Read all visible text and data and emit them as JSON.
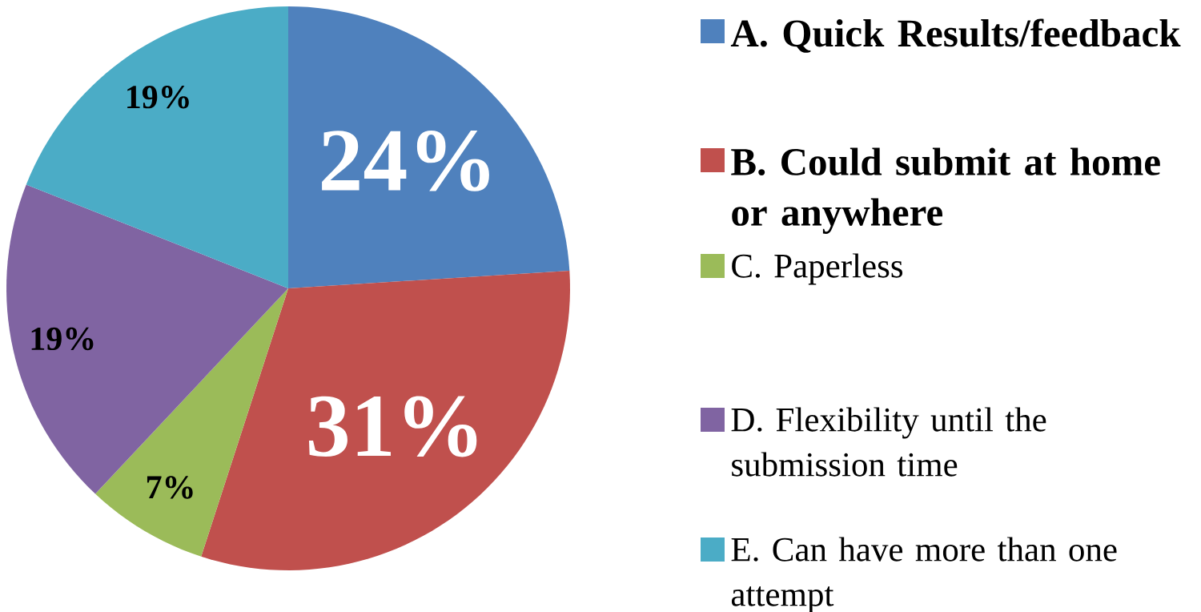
{
  "chart_data": {
    "type": "pie",
    "categories": [
      "A.    Quick Results/feedback",
      "B.     Could submit at home or anywhere",
      "C.     Paperless",
      "D.    Flexibility until the submission time",
      "E.     Can have more than one attempt"
    ],
    "values": [
      24,
      31,
      7,
      19,
      19
    ],
    "value_labels": [
      "24%",
      "31%",
      "7%",
      "19%",
      "19%"
    ],
    "colors": [
      "#4f81bd",
      "#c0504d",
      "#9bbb59",
      "#8064a2",
      "#4bacc6"
    ],
    "legend": "right"
  }
}
